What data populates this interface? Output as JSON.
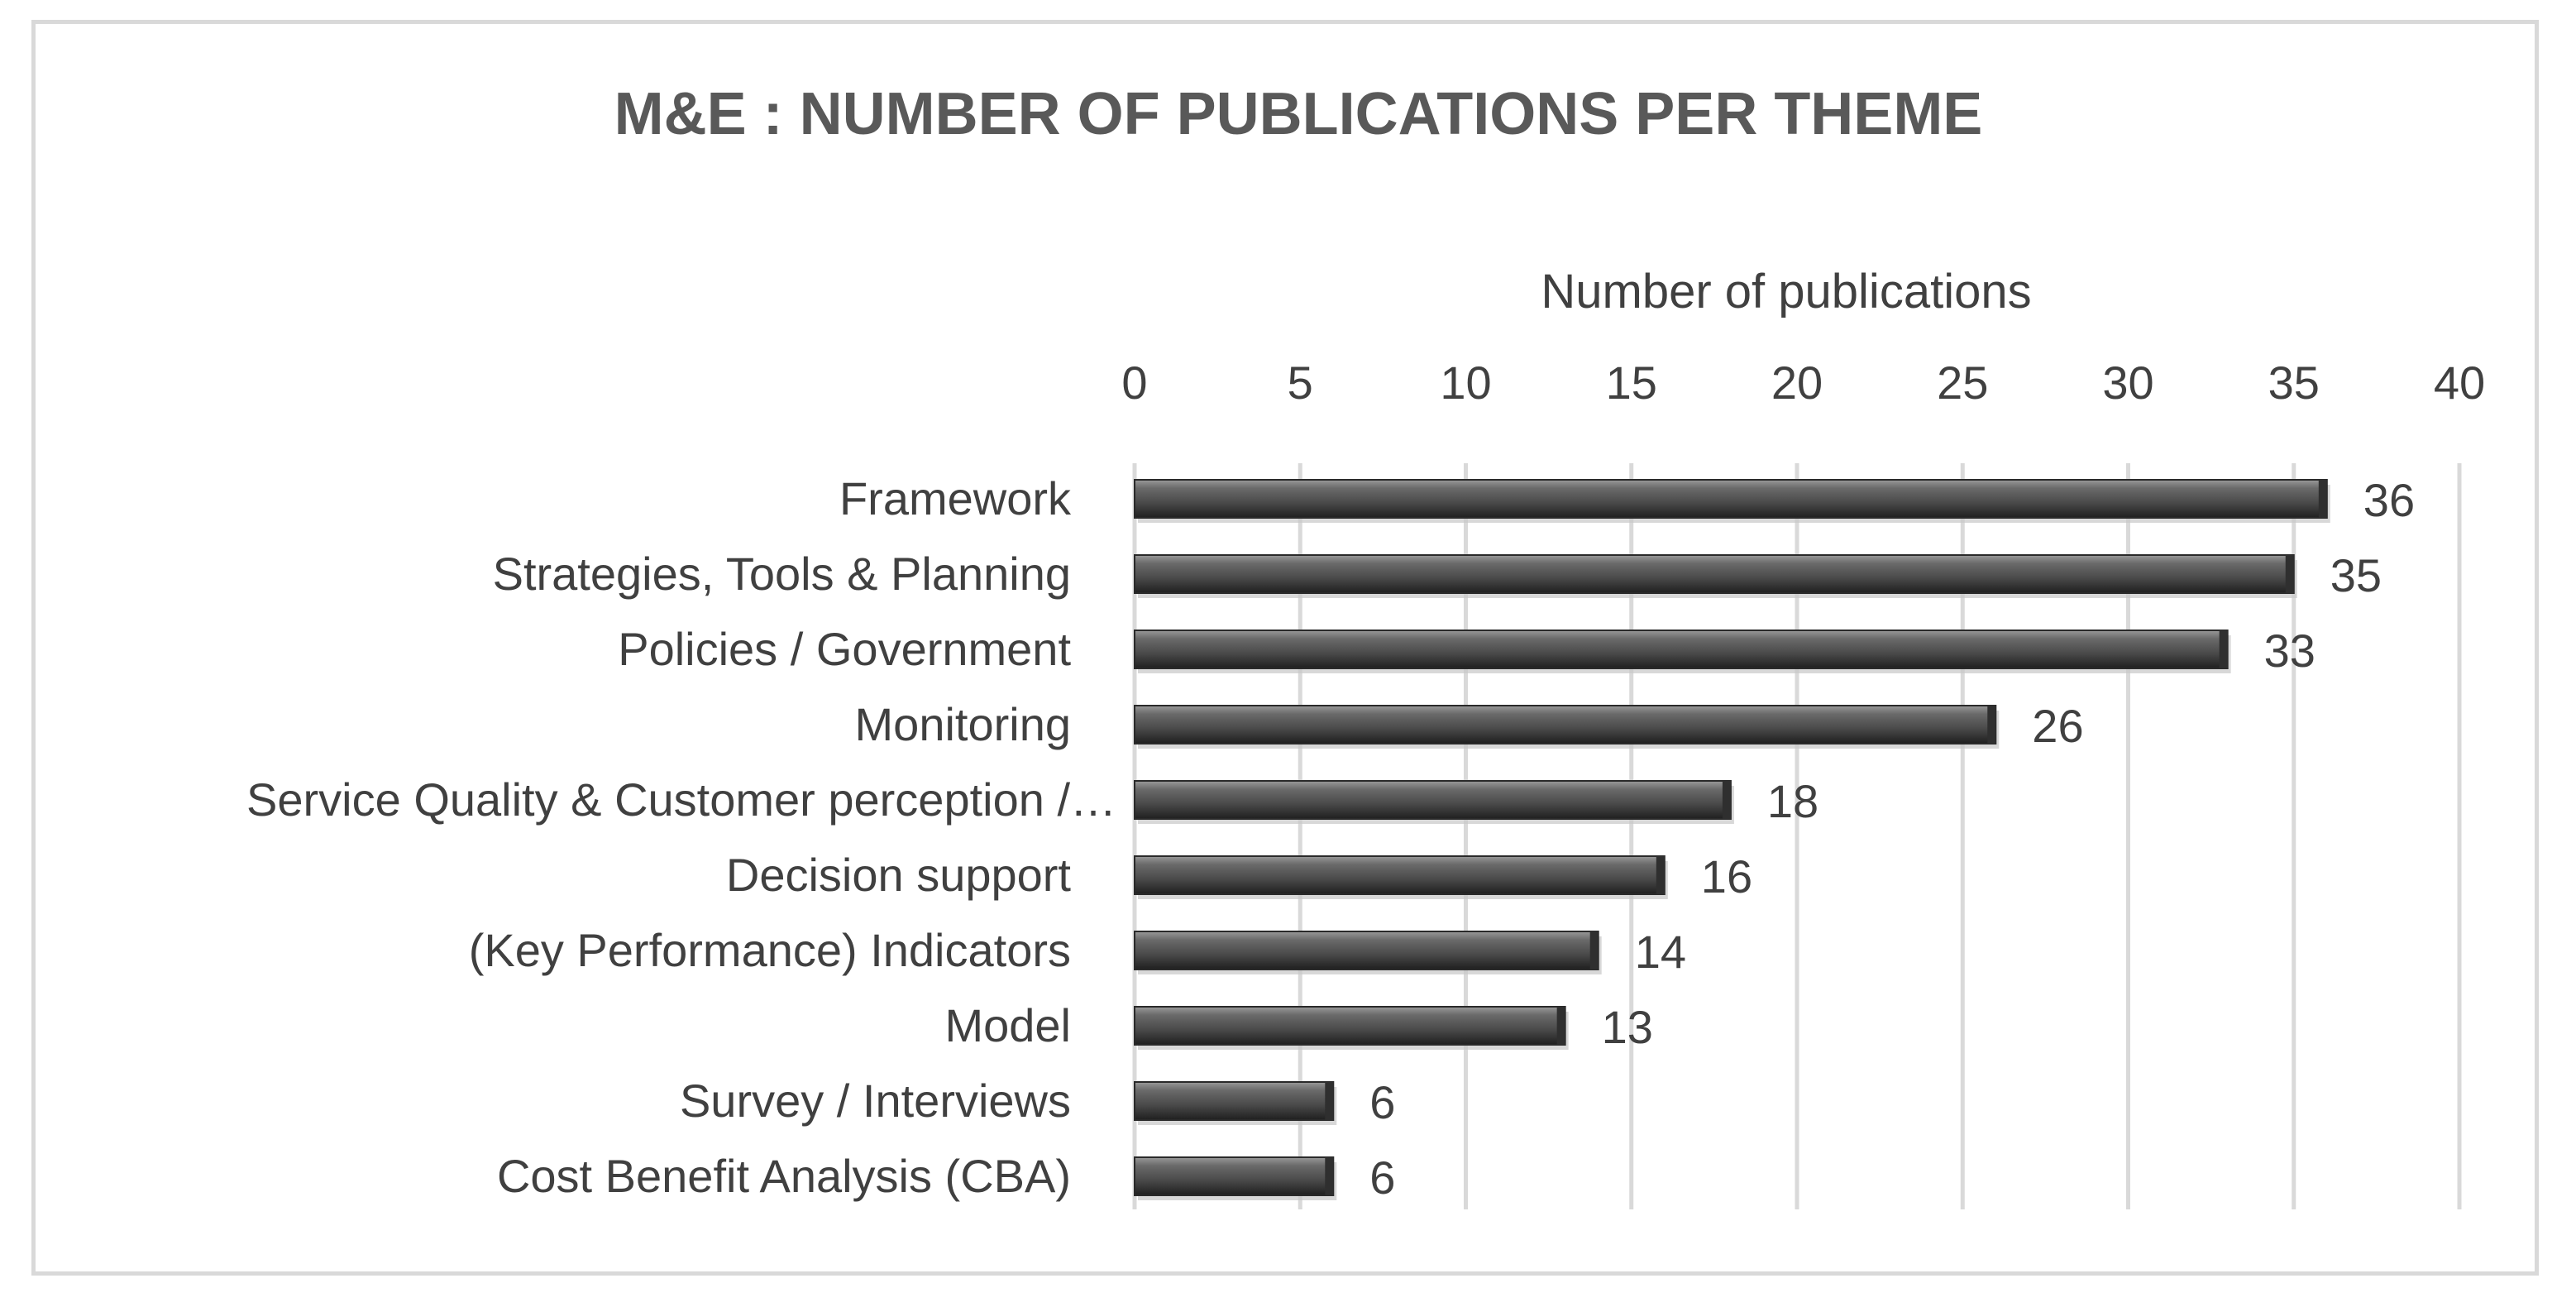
{
  "chart_data": {
    "type": "bar",
    "orientation": "horizontal",
    "title": "M&E : NUMBER OF PUBLICATIONS PER THEME",
    "xlabel": "Number of publications",
    "ylabel": "",
    "xlim": [
      0,
      40
    ],
    "x_ticks": [
      "0",
      "5",
      "10",
      "15",
      "20",
      "25",
      "30",
      "35",
      "40"
    ],
    "x_axis_position": "top",
    "grid": true,
    "legend": "none",
    "categories": [
      "Framework",
      "Strategies, Tools & Planning",
      "Policies / Government",
      "Monitoring",
      "Service Quality & Customer perception /…",
      "Decision support",
      "(Key Performance) Indicators",
      "Model",
      "Survey / Interviews",
      "Cost Benefit Analysis (CBA)"
    ],
    "values": [
      36,
      35,
      33,
      26,
      18,
      16,
      14,
      13,
      6,
      6
    ],
    "data_labels": [
      "36",
      "35",
      "33",
      "26",
      "18",
      "16",
      "14",
      "13",
      "6",
      "6"
    ],
    "bar_color": "#595959"
  }
}
